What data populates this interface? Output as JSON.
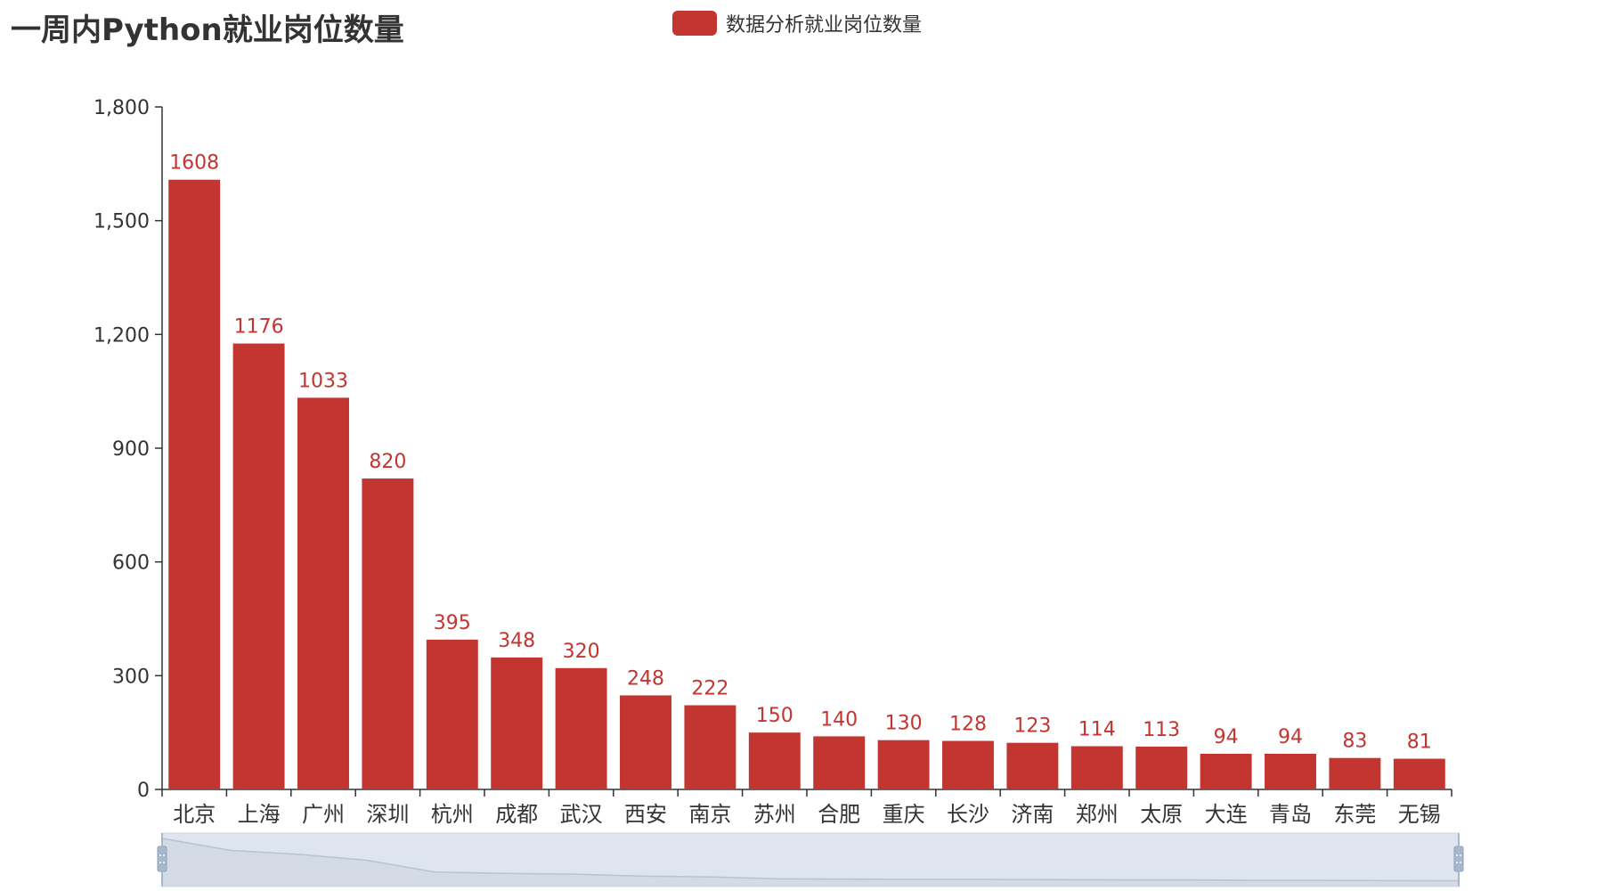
{
  "header": {
    "title": "一周内Python就业岗位数量"
  },
  "legend": {
    "label": "数据分析就业岗位数量",
    "color": "#c23531"
  },
  "chart_data": {
    "type": "bar",
    "title": "一周内Python就业岗位数量",
    "categories": [
      "北京",
      "上海",
      "广州",
      "深圳",
      "杭州",
      "成都",
      "武汉",
      "西安",
      "南京",
      "苏州",
      "合肥",
      "重庆",
      "长沙",
      "济南",
      "郑州",
      "太原",
      "大连",
      "青岛",
      "东莞",
      "无锡"
    ],
    "series": [
      {
        "name": "数据分析就业岗位数量",
        "color": "#c23531",
        "values": [
          1608,
          1176,
          1033,
          820,
          395,
          348,
          320,
          248,
          222,
          150,
          140,
          130,
          128,
          123,
          114,
          113,
          94,
          94,
          83,
          81
        ]
      }
    ],
    "ylim": [
      0,
      1800
    ],
    "yticks": [
      0,
      300,
      600,
      900,
      1200,
      1500,
      1800
    ],
    "ytick_labels": [
      "0",
      "300",
      "600",
      "900",
      "1,200",
      "1,500",
      "1,800"
    ],
    "grid": false,
    "legend_position": "top-center",
    "data_zoom_slider": {
      "range_percent": [
        0,
        100
      ]
    }
  }
}
